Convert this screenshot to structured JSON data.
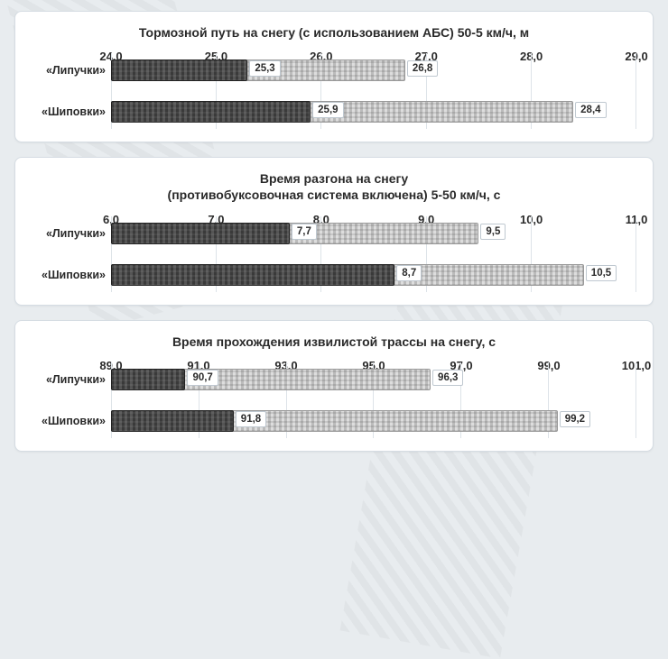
{
  "background_color": "#e8ecef",
  "panel_bg": "#ffffff",
  "panel_border": "#d5dce3",
  "grid_color": "#dde3e8",
  "text_color": "#2a2a2a",
  "title_fontsize": 14,
  "axis_fontsize": 13,
  "label_fontsize": 12.5,
  "value_fontsize": 11.5,
  "bar_dark_color": "#3a3a3a",
  "bar_light_color": "#bbbbbb",
  "charts": [
    {
      "title_lines": [
        "Тормозной путь на снегу (с использованием АБС) 50-5 км/ч, м"
      ],
      "type": "range-bar",
      "xmin": 24.0,
      "xmax": 29.0,
      "ticks": [
        "24,0",
        "25,0",
        "26,0",
        "27,0",
        "28,0",
        "29,0"
      ],
      "rows": [
        {
          "label": "«Липучки»",
          "low": 25.3,
          "high": 26.8,
          "low_label": "25,3",
          "high_label": "26,8"
        },
        {
          "label": "«Шиповки»",
          "low": 25.9,
          "high": 28.4,
          "low_label": "25,9",
          "high_label": "28,4"
        }
      ]
    },
    {
      "title_lines": [
        "Время разгона на снегу",
        "(противобуксовочная система включена) 5-50 км/ч, с"
      ],
      "type": "range-bar",
      "xmin": 6.0,
      "xmax": 11.0,
      "ticks": [
        "6,0",
        "7,0",
        "8,0",
        "9,0",
        "10,0",
        "11,0"
      ],
      "rows": [
        {
          "label": "«Липучки»",
          "low": 7.7,
          "high": 9.5,
          "low_label": "7,7",
          "high_label": "9,5"
        },
        {
          "label": "«Шиповки»",
          "low": 8.7,
          "high": 10.5,
          "low_label": "8,7",
          "high_label": "10,5"
        }
      ]
    },
    {
      "title_lines": [
        "Время прохождения извилистой трассы на снегу, с"
      ],
      "type": "range-bar",
      "xmin": 89.0,
      "xmax": 101.0,
      "ticks": [
        "89,0",
        "91,0",
        "93,0",
        "95,0",
        "97,0",
        "99,0",
        "101,0"
      ],
      "rows": [
        {
          "label": "«Липучки»",
          "low": 90.7,
          "high": 96.3,
          "low_label": "90,7",
          "high_label": "96,3"
        },
        {
          "label": "«Шиповки»",
          "low": 91.8,
          "high": 99.2,
          "low_label": "91,8",
          "high_label": "99,2"
        }
      ]
    }
  ]
}
